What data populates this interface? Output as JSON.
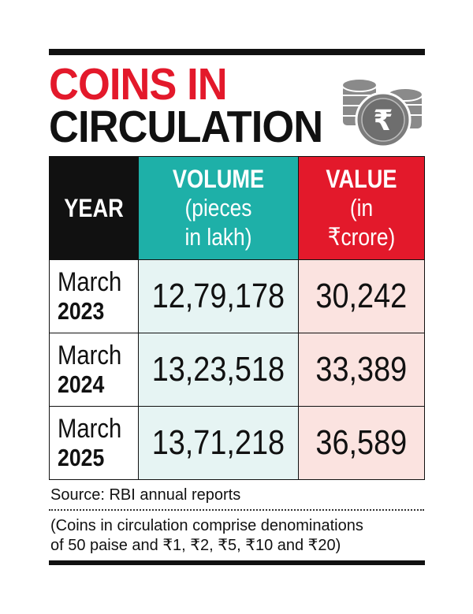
{
  "title_line1": "COINS IN",
  "title_line2": "CIRCULATION",
  "icon": "rupee-coin-stack-icon",
  "colors": {
    "title_red": "#e3192b",
    "year_header": "#111111",
    "volume_header": "#1eb0a8",
    "value_header": "#e3192b",
    "volume_cells": "#e6f4f3",
    "value_cells": "#fbe3e0"
  },
  "chart_data": {
    "type": "table",
    "columns": [
      {
        "title": "YEAR",
        "subtitle": ""
      },
      {
        "title": "VOLUME",
        "subtitle_line1": "(pieces",
        "subtitle_line2": "in lakh)"
      },
      {
        "title": "VALUE",
        "subtitle_line1": "(in",
        "subtitle_line2": "₹crore)"
      }
    ],
    "rows": [
      {
        "month": "March",
        "year": "2023",
        "volume": "12,79,178",
        "value": "30,242"
      },
      {
        "month": "March",
        "year": "2024",
        "volume": "13,23,518",
        "value": "33,389"
      },
      {
        "month": "March",
        "year": "2025",
        "volume": "13,71,218",
        "value": "36,589"
      }
    ]
  },
  "source": "Source: RBI annual reports",
  "note_line1": "(Coins in circulation comprise denominations",
  "note_line2": "of 50 paise and ₹1, ₹2, ₹5, ₹10 and ₹20)"
}
